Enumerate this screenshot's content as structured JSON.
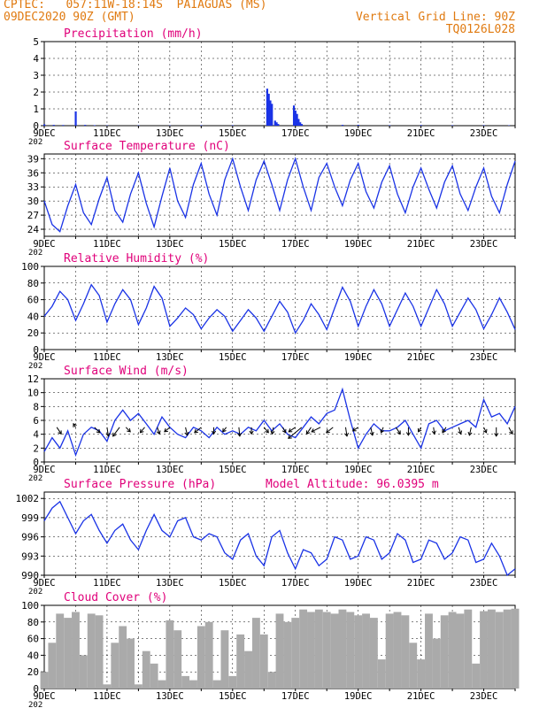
{
  "header": {
    "line1_left": "CPTEC:   057:11W-18:14S  PAIAGUAS (MS)",
    "line2_left": "09DEC2020 90Z (GMT)",
    "line2_right": "Vertical Grid Line: 90Z",
    "line3_right": "TQ0126L028",
    "color": "#e07a10"
  },
  "colors": {
    "title": "#e0007a",
    "series": "#1a33e6",
    "cloud": "#aaaaaa",
    "arrow": "#000000"
  },
  "x_axis": {
    "tick_labels": [
      "9DEC",
      "11DEC",
      "13DEC",
      "15DEC",
      "17DEC",
      "19DEC",
      "21DEC",
      "23DEC"
    ],
    "year_fragment": "202",
    "day_range": [
      9,
      24
    ]
  },
  "chart_data": [
    {
      "type": "bar",
      "title": "Precipitation (mm/h)",
      "ylim": [
        0,
        5
      ],
      "yticks": [
        "0",
        "1",
        "2",
        "3",
        "4",
        "5"
      ],
      "x": [
        9.0,
        9.3,
        9.6,
        10.0,
        10.3,
        10.6,
        11.0,
        12.0,
        13.0,
        14.0,
        15.0,
        16.1,
        16.15,
        16.2,
        16.25,
        16.35,
        16.4,
        16.45,
        16.95,
        17.0,
        17.05,
        17.1,
        17.15,
        17.2,
        18.5,
        19.0,
        20.0,
        21.0,
        22.0,
        23.0,
        23.8
      ],
      "values": [
        0.08,
        0.05,
        0.04,
        0.85,
        0.05,
        0.03,
        0.02,
        0.02,
        0.02,
        0.03,
        0.03,
        2.2,
        1.9,
        1.5,
        1.3,
        0.3,
        0.2,
        0.1,
        1.2,
        0.9,
        0.7,
        0.4,
        0.2,
        0.1,
        0.05,
        0.05,
        0.03,
        0.04,
        0.03,
        0.03,
        0.02
      ]
    },
    {
      "type": "line",
      "title": "Surface Temperature (nC)",
      "ylim": [
        22.5,
        40
      ],
      "yticks": [
        "24",
        "27",
        "30",
        "33",
        "36",
        "39"
      ],
      "series": [
        {
          "x": [
            9.0,
            9.25,
            9.5,
            9.75,
            10.0,
            10.25,
            10.5,
            10.75,
            11.0,
            11.25,
            11.5,
            11.75,
            12.0,
            12.25,
            12.5,
            12.75,
            13.0,
            13.25,
            13.5,
            13.75,
            14.0,
            14.25,
            14.5,
            14.75,
            15.0,
            15.25,
            15.5,
            15.75,
            16.0,
            16.25,
            16.5,
            16.75,
            17.0,
            17.25,
            17.5,
            17.75,
            18.0,
            18.25,
            18.5,
            18.75,
            19.0,
            19.25,
            19.5,
            19.75,
            20.0,
            20.25,
            20.5,
            20.75,
            21.0,
            21.25,
            21.5,
            21.75,
            22.0,
            22.25,
            22.5,
            22.75,
            23.0,
            23.25,
            23.5,
            23.75,
            24.0
          ],
          "values": [
            30.0,
            25.0,
            23.5,
            29.0,
            33.5,
            27.5,
            25.0,
            30.5,
            35.0,
            28.0,
            25.5,
            31.5,
            36.0,
            29.5,
            24.5,
            31.0,
            37.0,
            30.0,
            26.5,
            33.5,
            38.0,
            31.5,
            27.0,
            34.5,
            39.0,
            33.0,
            28.0,
            34.5,
            38.5,
            33.5,
            28.0,
            34.5,
            39.0,
            33.0,
            28.0,
            35.0,
            38.0,
            33.0,
            29.0,
            34.5,
            38.0,
            32.0,
            28.5,
            34.0,
            37.5,
            31.5,
            27.5,
            33.0,
            37.0,
            32.5,
            28.5,
            34.0,
            37.5,
            31.5,
            28.0,
            33.0,
            37.0,
            31.0,
            27.5,
            33.5,
            38.5
          ]
        }
      ]
    },
    {
      "type": "line",
      "title": "Relative Humidity (%)",
      "ylim": [
        0,
        100
      ],
      "yticks": [
        "0",
        "20",
        "40",
        "60",
        "80",
        "100"
      ],
      "series": [
        {
          "x": [
            9.0,
            9.25,
            9.5,
            9.75,
            10.0,
            10.25,
            10.5,
            10.75,
            11.0,
            11.25,
            11.5,
            11.75,
            12.0,
            12.25,
            12.5,
            12.75,
            13.0,
            13.25,
            13.5,
            13.75,
            14.0,
            14.25,
            14.5,
            14.75,
            15.0,
            15.25,
            15.5,
            15.75,
            16.0,
            16.25,
            16.5,
            16.75,
            17.0,
            17.25,
            17.5,
            17.75,
            18.0,
            18.25,
            18.5,
            18.75,
            19.0,
            19.25,
            19.5,
            19.75,
            20.0,
            20.25,
            20.5,
            20.75,
            21.0,
            21.25,
            21.5,
            21.75,
            22.0,
            22.25,
            22.5,
            22.75,
            23.0,
            23.25,
            23.5,
            23.75,
            24.0
          ],
          "values": [
            40.0,
            52.0,
            70.0,
            60.0,
            35.0,
            55.0,
            78.0,
            65.0,
            33.0,
            55.0,
            72.0,
            60.0,
            30.0,
            50.0,
            76.0,
            62.0,
            28.0,
            38.0,
            50.0,
            42.0,
            25.0,
            38.0,
            48.0,
            40.0,
            22.0,
            35.0,
            48.0,
            38.0,
            22.0,
            40.0,
            58.0,
            45.0,
            20.0,
            35.0,
            55.0,
            42.0,
            24.0,
            50.0,
            75.0,
            58.0,
            28.0,
            52.0,
            72.0,
            55.0,
            28.0,
            48.0,
            68.0,
            52.0,
            28.0,
            50.0,
            72.0,
            55.0,
            28.0,
            45.0,
            62.0,
            48.0,
            25.0,
            42.0,
            62.0,
            45.0,
            24.0
          ]
        }
      ]
    },
    {
      "type": "line",
      "title": "Surface Wind (m/s)",
      "ylim": [
        0,
        12
      ],
      "yticks": [
        "0",
        "2",
        "4",
        "6",
        "8",
        "10",
        "12"
      ],
      "series": [
        {
          "x": [
            9.0,
            9.25,
            9.5,
            9.75,
            10.0,
            10.25,
            10.5,
            10.75,
            11.0,
            11.25,
            11.5,
            11.75,
            12.0,
            12.25,
            12.5,
            12.75,
            13.0,
            13.25,
            13.5,
            13.75,
            14.0,
            14.25,
            14.5,
            14.75,
            15.0,
            15.25,
            15.5,
            15.75,
            16.0,
            16.25,
            16.5,
            16.75,
            17.0,
            17.25,
            17.5,
            17.75,
            18.0,
            18.25,
            18.5,
            18.75,
            19.0,
            19.25,
            19.5,
            19.75,
            20.0,
            20.25,
            20.5,
            20.75,
            21.0,
            21.25,
            21.5,
            21.75,
            22.0,
            22.25,
            22.5,
            22.75,
            23.0,
            23.25,
            23.5,
            23.75,
            24.0
          ],
          "values": [
            1.5,
            3.5,
            2.0,
            4.5,
            1.0,
            4.0,
            5.0,
            4.5,
            3.0,
            6.0,
            7.5,
            6.0,
            7.0,
            5.5,
            4.0,
            6.5,
            5.0,
            4.0,
            3.5,
            5.0,
            4.5,
            3.5,
            5.0,
            4.0,
            4.5,
            4.0,
            5.0,
            4.5,
            6.0,
            4.5,
            5.5,
            4.0,
            3.5,
            5.0,
            6.5,
            5.5,
            7.0,
            7.5,
            10.5,
            6.0,
            2.0,
            4.0,
            5.5,
            4.5,
            4.5,
            5.0,
            6.0,
            4.0,
            2.0,
            5.5,
            6.0,
            4.5,
            5.0,
            5.5,
            6.0,
            5.0,
            9.0,
            6.5,
            7.0,
            5.5,
            8.0
          ]
        }
      ]
    },
    {
      "type": "line",
      "title": "Surface Pressure (hPa)",
      "annotation": "Model Altitude: 96.0395 m",
      "ylim": [
        990,
        1003
      ],
      "yticks": [
        "990",
        "993",
        "996",
        "999",
        "1002"
      ],
      "series": [
        {
          "x": [
            9.0,
            9.25,
            9.5,
            9.75,
            10.0,
            10.25,
            10.5,
            10.75,
            11.0,
            11.25,
            11.5,
            11.75,
            12.0,
            12.25,
            12.5,
            12.75,
            13.0,
            13.25,
            13.5,
            13.75,
            14.0,
            14.25,
            14.5,
            14.75,
            15.0,
            15.25,
            15.5,
            15.75,
            16.0,
            16.25,
            16.5,
            16.75,
            17.0,
            17.25,
            17.5,
            17.75,
            18.0,
            18.25,
            18.5,
            18.75,
            19.0,
            19.25,
            19.5,
            19.75,
            20.0,
            20.25,
            20.5,
            20.75,
            21.0,
            21.25,
            21.5,
            21.75,
            22.0,
            22.25,
            22.5,
            22.75,
            23.0,
            23.25,
            23.5,
            23.75,
            24.0
          ],
          "values": [
            998.5,
            1000.5,
            1001.5,
            999.0,
            996.5,
            998.5,
            999.5,
            997.0,
            995.0,
            997.0,
            998.0,
            995.5,
            994.0,
            997.0,
            999.5,
            997.0,
            996.0,
            998.5,
            999.0,
            996.0,
            995.5,
            996.5,
            996.0,
            993.5,
            992.5,
            995.5,
            996.5,
            993.0,
            991.5,
            996.0,
            997.0,
            993.5,
            991.0,
            994.0,
            993.5,
            991.5,
            992.5,
            996.0,
            995.5,
            992.5,
            993.0,
            996.0,
            995.5,
            992.5,
            993.5,
            996.5,
            995.5,
            992.0,
            992.5,
            995.5,
            995.0,
            992.5,
            993.5,
            996.0,
            995.5,
            992.0,
            992.5,
            995.0,
            993.0,
            990.0,
            991.0
          ]
        }
      ]
    },
    {
      "type": "area",
      "title": "Cloud Cover (%)",
      "ylim": [
        0,
        100
      ],
      "yticks": [
        "0",
        "20",
        "40",
        "60",
        "80",
        "100"
      ],
      "series": [
        {
          "x": [
            9.0,
            9.25,
            9.5,
            9.75,
            10.0,
            10.25,
            10.5,
            10.75,
            11.0,
            11.25,
            11.5,
            11.75,
            12.0,
            12.25,
            12.5,
            12.75,
            13.0,
            13.25,
            13.5,
            13.75,
            14.0,
            14.25,
            14.5,
            14.75,
            15.0,
            15.25,
            15.5,
            15.75,
            16.0,
            16.25,
            16.5,
            16.75,
            17.0,
            17.25,
            17.5,
            17.75,
            18.0,
            18.25,
            18.5,
            18.75,
            19.0,
            19.25,
            19.5,
            19.75,
            20.0,
            20.25,
            20.5,
            20.75,
            21.0,
            21.25,
            21.5,
            21.75,
            22.0,
            22.25,
            22.5,
            22.75,
            23.0,
            23.25,
            23.5,
            23.75,
            24.0
          ],
          "values": [
            20,
            55,
            90,
            85,
            92,
            40,
            90,
            88,
            5,
            55,
            75,
            60,
            5,
            45,
            30,
            10,
            82,
            70,
            15,
            10,
            75,
            80,
            10,
            70,
            15,
            65,
            45,
            85,
            65,
            20,
            90,
            80,
            85,
            95,
            92,
            95,
            92,
            90,
            95,
            92,
            88,
            90,
            85,
            35,
            90,
            92,
            88,
            55,
            35,
            90,
            60,
            88,
            92,
            90,
            95,
            30,
            93,
            95,
            92,
            95,
            96
          ]
        }
      ]
    }
  ],
  "wind_vectors": {
    "x": [
      9.4,
      10.0,
      10.6,
      11.0,
      11.4,
      11.6,
      12.2,
      12.6,
      13.0,
      13.5,
      14.0,
      14.4,
      14.8,
      15.2,
      15.6,
      16.0,
      16.3,
      16.6,
      17.0,
      17.2,
      17.5,
      17.8,
      18.2,
      18.6,
      19.0,
      19.4,
      19.8,
      20.2,
      20.6,
      21.0,
      21.4,
      21.8,
      22.2,
      22.6,
      23.0,
      23.4,
      23.8
    ],
    "u": [
      1.0,
      -0.5,
      1.2,
      0.3,
      -1.5,
      1.0,
      -1.0,
      0.5,
      -1.2,
      0.4,
      -1.5,
      0.0,
      -0.8,
      0.2,
      0.0,
      1.0,
      -0.3,
      0.6,
      -1.5,
      -3.0,
      -1.0,
      -2.0,
      -1.5,
      0.3,
      -1.2,
      0.4,
      -0.5,
      1.0,
      0.0,
      -0.6,
      0.2,
      -0.8,
      0.5,
      -0.4,
      0.6,
      0.0,
      0.8
    ],
    "v": [
      -1.5,
      0.8,
      -1.2,
      -2.0,
      -2.0,
      -1.0,
      -1.2,
      -1.5,
      -1.0,
      -1.8,
      -1.2,
      -1.5,
      -1.0,
      -2.0,
      -1.5,
      -1.2,
      -1.5,
      -1.2,
      -1.0,
      -2.5,
      -1.5,
      -1.0,
      -1.2,
      -2.0,
      -0.8,
      -1.8,
      -1.2,
      -1.5,
      -1.8,
      -1.0,
      -1.5,
      -1.2,
      -1.5,
      -1.8,
      -1.2,
      -2.0,
      -1.5
    ]
  }
}
